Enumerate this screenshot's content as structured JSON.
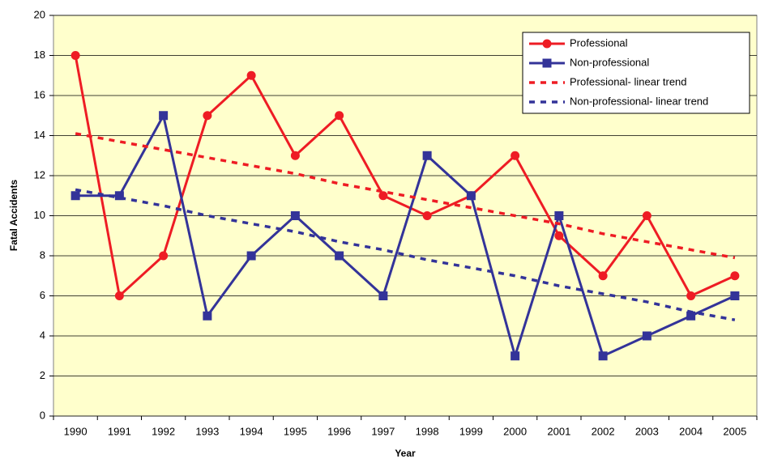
{
  "chart_data": {
    "type": "line",
    "x_label": "Year",
    "y_label": "Fatal Accidents",
    "categories": [
      "1990",
      "1991",
      "1992",
      "1993",
      "1994",
      "1995",
      "1996",
      "1997",
      "1998",
      "1999",
      "2000",
      "2001",
      "2002",
      "2003",
      "2004",
      "2005"
    ],
    "series": [
      {
        "name": "Professional",
        "color": "#ee1c24",
        "marker": "circle",
        "values": [
          18,
          6,
          8,
          15,
          17,
          13,
          15,
          11,
          10,
          11,
          13,
          9,
          7,
          10,
          6,
          7
        ]
      },
      {
        "name": "Non-professional",
        "color": "#333399",
        "marker": "square",
        "values": [
          11,
          11,
          15,
          5,
          8,
          10,
          8,
          6,
          13,
          11,
          3,
          10,
          3,
          4,
          5,
          6
        ]
      },
      {
        "name": "Professional- linear trend",
        "color": "#ee1c24",
        "dashed": true,
        "values": [
          14.1,
          13.7,
          13.3,
          12.9,
          12.5,
          12.1,
          11.6,
          11.2,
          10.8,
          10.4,
          10.0,
          9.6,
          9.1,
          8.7,
          8.3,
          7.9
        ]
      },
      {
        "name": "Non-professional- linear trend",
        "color": "#333399",
        "dashed": true,
        "values": [
          11.3,
          10.9,
          10.5,
          10.0,
          9.6,
          9.2,
          8.7,
          8.3,
          7.8,
          7.4,
          7.0,
          6.5,
          6.1,
          5.7,
          5.2,
          4.8
        ]
      }
    ],
    "ylim": [
      0,
      20
    ],
    "yticks": [
      0,
      2,
      4,
      6,
      8,
      10,
      12,
      14,
      16,
      18,
      20
    ],
    "grid": true,
    "legend": "upper right"
  }
}
